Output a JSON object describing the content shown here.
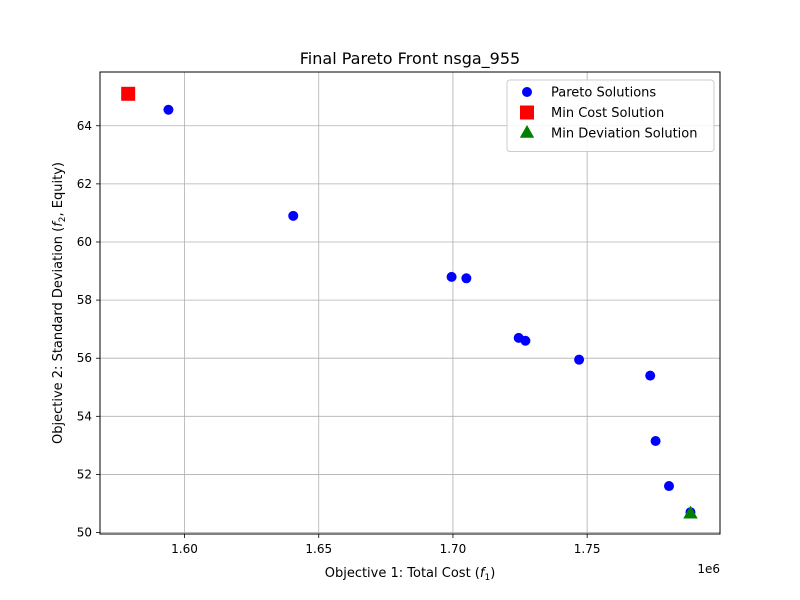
{
  "chart_data": {
    "type": "scatter",
    "title": "Final Pareto Front nsga_955",
    "xlabel": "Objective 1: Total Cost (",
    "xlabel_sym": "f",
    "xlabel_sub": "1",
    "xlabel_end": ")",
    "ylabel": "Objective 2: Standard Deviation (",
    "ylabel_sym": "f",
    "ylabel_sub": "2",
    "ylabel_end": ", Equity)",
    "x_offset_label": "1e6",
    "xlim": [
      1.5685,
      1.7995
    ],
    "ylim": [
      49.95,
      65.85
    ],
    "xticks": [
      1.6,
      1.65,
      1.7,
      1.75
    ],
    "xtick_labels": [
      "1.60",
      "1.65",
      "1.70",
      "1.75"
    ],
    "yticks": [
      50,
      52,
      54,
      56,
      58,
      60,
      62,
      64
    ],
    "ytick_labels": [
      "50",
      "52",
      "54",
      "56",
      "58",
      "60",
      "62",
      "64"
    ],
    "grid": true,
    "legend_position": "top-right",
    "series": [
      {
        "name": "Pareto Solutions",
        "marker": "circle",
        "color": "#0000ff",
        "points": [
          [
            1.594,
            64.55
          ],
          [
            1.6405,
            60.9
          ],
          [
            1.6995,
            58.8
          ],
          [
            1.705,
            58.75
          ],
          [
            1.7245,
            56.7
          ],
          [
            1.727,
            56.6
          ],
          [
            1.747,
            55.95
          ],
          [
            1.7735,
            55.4
          ],
          [
            1.7755,
            53.15
          ],
          [
            1.7805,
            51.6
          ],
          [
            1.7885,
            50.7
          ]
        ]
      },
      {
        "name": "Min Cost Solution",
        "marker": "square",
        "color": "#ff0000",
        "points": [
          [
            1.579,
            65.1
          ]
        ]
      },
      {
        "name": "Min Deviation Solution",
        "marker": "triangle",
        "color": "#008000",
        "points": [
          [
            1.7885,
            50.65
          ]
        ]
      }
    ]
  }
}
